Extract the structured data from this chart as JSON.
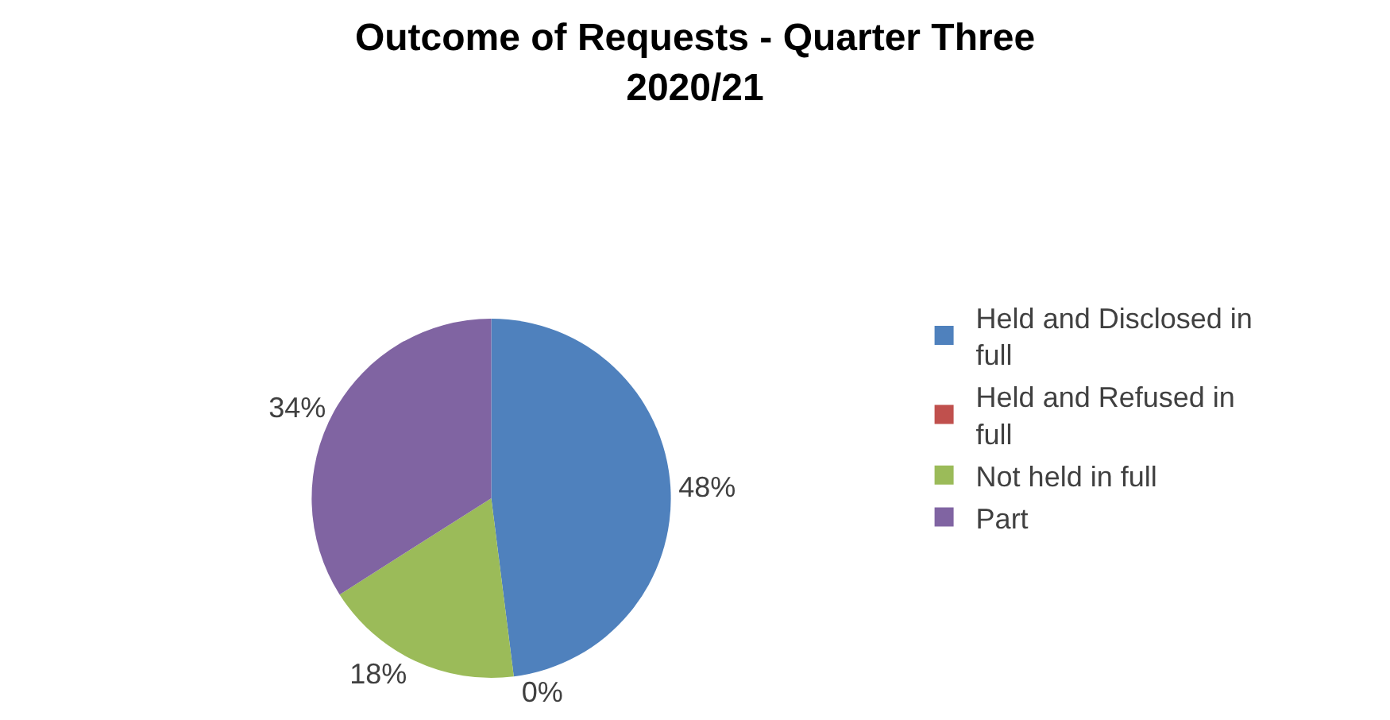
{
  "chart_data": {
    "type": "pie",
    "title": "Outcome of Requests - Quarter Three 2020/21",
    "categories": [
      "Held and Disclosed in full",
      "Held and Refused in full",
      "Not held in full",
      "Part"
    ],
    "values": [
      48,
      0,
      18,
      34
    ],
    "colors": [
      "#4f81bd",
      "#c0504d",
      "#9bbb59",
      "#8064a2"
    ],
    "value_labels": [
      "48%",
      "0%",
      "18%",
      "34%"
    ],
    "legend": "right"
  }
}
